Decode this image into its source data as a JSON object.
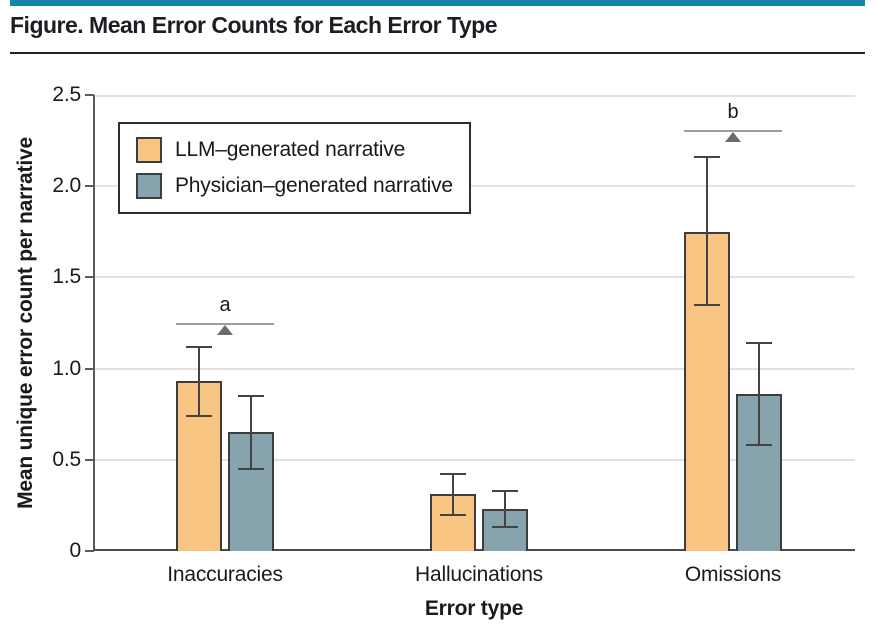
{
  "figure": {
    "title": "Figure. Mean Error Counts for Each Error Type",
    "accent_bar_color": "#1485A6",
    "divider_color": "#222222"
  },
  "chart_data": {
    "type": "bar",
    "title": "Figure. Mean Error Counts for Each Error Type",
    "xlabel": "Error type",
    "ylabel": "Mean unique error count per narrative",
    "categories": [
      "Inaccuracies",
      "Hallucinations",
      "Omissions"
    ],
    "series": [
      {
        "name": "LLM–generated narrative",
        "color": "#F7C581",
        "border_color": "#3D3D3D",
        "values": [
          0.93,
          0.31,
          1.75
        ],
        "error_low": [
          0.74,
          0.2,
          1.35
        ],
        "error_high": [
          1.12,
          0.42,
          2.16
        ]
      },
      {
        "name": "Physician–generated narrative",
        "color": "#87A3AE",
        "border_color": "#3D3D3D",
        "values": [
          0.65,
          0.23,
          0.86
        ],
        "error_low": [
          0.45,
          0.13,
          0.58
        ],
        "error_high": [
          0.85,
          0.33,
          1.14
        ]
      }
    ],
    "annotations": [
      {
        "label": "a",
        "category_index": 0,
        "y": 1.25
      },
      {
        "label": "b",
        "category_index": 2,
        "y": 2.31
      }
    ],
    "ylim": [
      0,
      2.5
    ],
    "yticks": [
      "0",
      "0.5",
      "1.0",
      "1.5",
      "2.0",
      "2.5"
    ],
    "grid": true,
    "legend_position": "upper-left",
    "grid_color": "#E2E2E2",
    "axis_color": "#5A5A5A",
    "error_bar_color": "#434343",
    "annotation_line_color": "#9C9C9C",
    "annotation_marker_color": "#6B6B6B",
    "text_color": "#1A1A1A"
  }
}
